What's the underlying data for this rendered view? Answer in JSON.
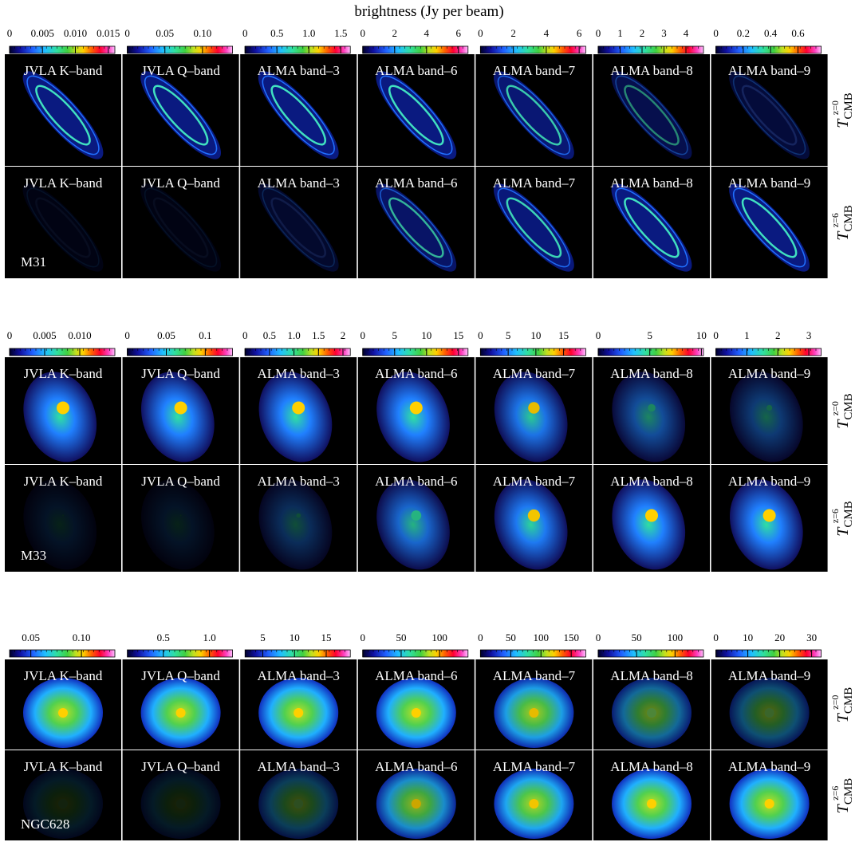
{
  "title": "brightness (Jy per beam)",
  "bands": [
    "JVLA K–band",
    "JVLA Q–band",
    "ALMA band–3",
    "ALMA band–6",
    "ALMA band–7",
    "ALMA band–8",
    "ALMA band–9"
  ],
  "rows": [
    {
      "symbol": "T",
      "subscript": "CMB",
      "superscript": "z=0"
    },
    {
      "symbol": "T",
      "subscript": "CMB",
      "superscript": "z=6"
    }
  ],
  "galaxies": [
    {
      "name": "M31",
      "colorbars": [
        {
          "lim": [
            0,
            0.016
          ],
          "ticks": [
            0,
            0.005,
            {
              "value": 0.01,
              "label": "0.010"
            },
            0.015
          ]
        },
        {
          "lim": [
            0,
            0.14
          ],
          "ticks": [
            0,
            0.05,
            {
              "value": 0.1,
              "label": "0.10"
            }
          ]
        },
        {
          "lim": [
            0,
            1.65
          ],
          "ticks": [
            0,
            0.5,
            {
              "value": 1,
              "label": "1.0"
            },
            1.5
          ]
        },
        {
          "lim": [
            0,
            6.6
          ],
          "ticks": [
            0,
            2,
            4,
            6
          ]
        },
        {
          "lim": [
            0,
            6.4
          ],
          "ticks": [
            0,
            2,
            4,
            6
          ]
        },
        {
          "lim": [
            0,
            4.8
          ],
          "ticks": [
            0,
            1,
            2,
            3,
            4
          ]
        },
        {
          "lim": [
            0,
            0.77
          ],
          "ticks": [
            0,
            0.2,
            0.4,
            0.6
          ]
        }
      ]
    },
    {
      "name": "M33",
      "colorbars": [
        {
          "lim": [
            0,
            0.015
          ],
          "ticks": [
            0,
            0.005,
            {
              "value": 0.01,
              "label": "0.010"
            }
          ]
        },
        {
          "lim": [
            0,
            0.135
          ],
          "ticks": [
            0,
            0.05,
            0.1
          ]
        },
        {
          "lim": [
            0,
            2.15
          ],
          "ticks": [
            0,
            0.5,
            {
              "value": 1,
              "label": "1.0"
            },
            1.5,
            2
          ]
        },
        {
          "lim": [
            0,
            16.5
          ],
          "ticks": [
            0,
            5,
            10,
            15
          ]
        },
        {
          "lim": [
            0,
            19
          ],
          "ticks": [
            0,
            5,
            10,
            15
          ]
        },
        {
          "lim": [
            0,
            10.2
          ],
          "ticks": [
            0,
            5,
            10
          ]
        },
        {
          "lim": [
            0,
            3.4
          ],
          "ticks": [
            0,
            1,
            2,
            3
          ]
        }
      ]
    },
    {
      "name": "NGC628",
      "colorbars": [
        {
          "lim": [
            0.029,
            0.133
          ],
          "ticks": [
            0.05,
            {
              "value": 0.1,
              "label": "0.10"
            }
          ]
        },
        {
          "lim": [
            0.11,
            1.25
          ],
          "ticks": [
            0.5,
            {
              "value": 1,
              "label": "1.0"
            }
          ]
        },
        {
          "lim": [
            2.2,
            18.8
          ],
          "ticks": [
            5,
            10,
            15
          ]
        },
        {
          "lim": [
            0,
            137
          ],
          "ticks": [
            0,
            50,
            100
          ]
        },
        {
          "lim": [
            0,
            174
          ],
          "ticks": [
            0,
            50,
            100,
            150
          ]
        },
        {
          "lim": [
            0,
            137
          ],
          "ticks": [
            0,
            50,
            100
          ]
        },
        {
          "lim": [
            0,
            33
          ],
          "ticks": [
            0,
            10,
            20,
            30
          ]
        }
      ]
    }
  ]
}
